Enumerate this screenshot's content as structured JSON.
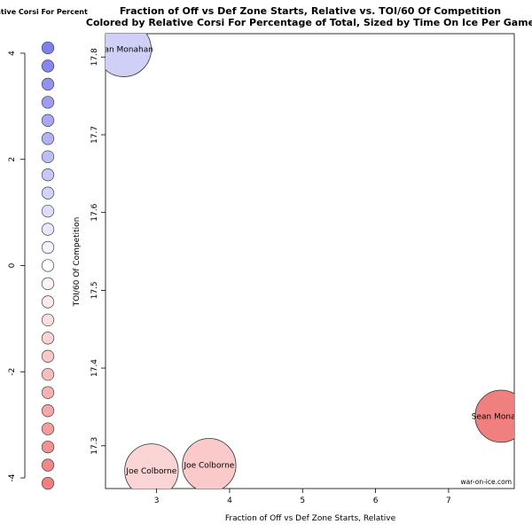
{
  "legend": {
    "title": "Relative Corsi For Percent",
    "ticks": [
      "4",
      "2",
      "0",
      "-2",
      "-4"
    ],
    "tick_values": [
      4,
      2,
      0,
      -2,
      -4
    ],
    "range": [
      -4.2,
      4.2
    ],
    "swatch_count": 25,
    "low_color": "#f08080",
    "mid_color": "#ffffff",
    "high_color": "#7f7fef"
  },
  "chart_data": {
    "type": "scatter",
    "title_line1": "Fraction of Off vs Def Zone Starts, Relative vs. TOI/60 Of Competition",
    "title_line2": "Colored by Relative Corsi For Percentage of Total, Sized by Time On Ice Per Game",
    "xlabel": "Fraction of Off vs Def Zone Starts, Relative",
    "ylabel": "TOI/60 Of Competition",
    "xlim": [
      2.3,
      7.9
    ],
    "ylim": [
      17.245,
      17.83
    ],
    "xticks": [
      3,
      4,
      5,
      6,
      7
    ],
    "yticks": [
      17.3,
      17.4,
      17.5,
      17.6,
      17.7,
      17.8
    ],
    "points": [
      {
        "label": "Sean Monahan",
        "x": 2.55,
        "y": 17.81,
        "rel_cf": 1.5,
        "color": "#cfcff8",
        "size": 1.0
      },
      {
        "label": "Joe Colborne",
        "x": 2.93,
        "y": 17.268,
        "rel_cf": -1.2,
        "color": "#fbd5d5",
        "size": 0.95
      },
      {
        "label": "Joe Colborne",
        "x": 3.72,
        "y": 17.275,
        "rel_cf": -1.6,
        "color": "#fac9c9",
        "size": 0.95
      },
      {
        "label": "Sean Monahan",
        "x": 7.72,
        "y": 17.338,
        "rel_cf": -3.9,
        "color": "#f08080",
        "size": 0.9
      }
    ],
    "watermark": "war-on-ice.com"
  }
}
